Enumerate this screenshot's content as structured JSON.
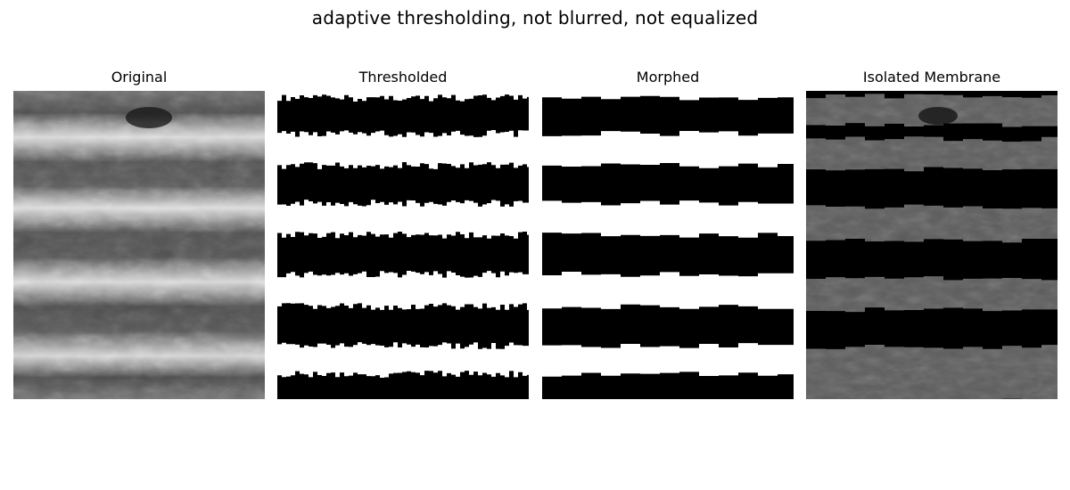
{
  "figure": {
    "title": "adaptive thresholding, not blurred, not equalized"
  },
  "panels": [
    {
      "id": "original",
      "title": "Original",
      "kind": "grayscale-texture"
    },
    {
      "id": "thresholded",
      "title": "Thresholded",
      "kind": "binary-mask-rough"
    },
    {
      "id": "morphed",
      "title": "Morphed",
      "kind": "binary-mask-smooth"
    },
    {
      "id": "isolated",
      "title": "Isolated Membrane",
      "kind": "masked-grayscale"
    }
  ],
  "colors": {
    "background": "#ffffff",
    "mask_on": "#000000",
    "mask_off": "#ffffff"
  },
  "bands": {
    "count": 5
  }
}
